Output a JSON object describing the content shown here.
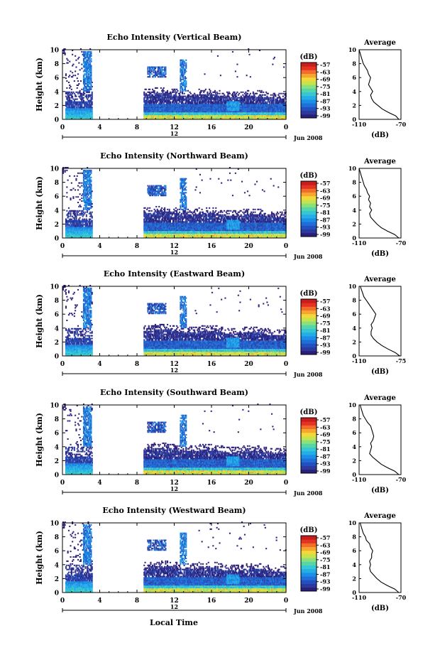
{
  "xlabel_bottom": "Local Time",
  "colorbar": {
    "unit": "(dB)",
    "ticks": [
      "-57",
      "-63",
      "-69",
      "-75",
      "-81",
      "-87",
      "-93",
      "-99"
    ],
    "colors": [
      "#2a1f7a",
      "#2b3a9c",
      "#2450bf",
      "#1f6fd8",
      "#1b8ee8",
      "#25aee6",
      "#37c6d3",
      "#56d6a8",
      "#8ae07a",
      "#c6e34e",
      "#f2d83a",
      "#f7a52f",
      "#f26c2a",
      "#e43322",
      "#c81d1d"
    ]
  },
  "date_label": "Jun 2008",
  "chart_data": [
    {
      "type": "heatmap",
      "title": "Echo Intensity (Vertical Beam)",
      "ylabel": "Height (km)",
      "yticks": [
        "0",
        "2",
        "4",
        "6",
        "8",
        "10"
      ],
      "ylim": [
        0,
        10
      ],
      "xticks": [
        "0",
        "4",
        "8",
        "12",
        "16",
        "20",
        "0"
      ],
      "xlim": [
        0,
        24
      ],
      "day_label": "12",
      "profile": {
        "title": "Average",
        "xlabel": "(dB)",
        "xticks": [
          "-110",
          "-70"
        ],
        "xlim": [
          -110,
          -70
        ],
        "yticks": [
          "0",
          "2",
          "4",
          "6",
          "8",
          "10"
        ],
        "points": [
          [
            -72,
            0
          ],
          [
            -75,
            0.5
          ],
          [
            -82,
            1
          ],
          [
            -88,
            1.5
          ],
          [
            -92,
            2
          ],
          [
            -96,
            2.5
          ],
          [
            -98,
            3
          ],
          [
            -99,
            3.5
          ],
          [
            -97,
            4
          ],
          [
            -99,
            4.5
          ],
          [
            -101,
            5
          ],
          [
            -100,
            5.5
          ],
          [
            -99,
            6
          ],
          [
            -101,
            6.5
          ],
          [
            -102,
            7
          ],
          [
            -104,
            7.5
          ],
          [
            -106,
            8
          ],
          [
            -107,
            8.5
          ],
          [
            -108,
            9
          ],
          [
            -109,
            9.5
          ],
          [
            -110,
            10
          ]
        ]
      }
    },
    {
      "type": "heatmap",
      "title": "Echo Intensity (Northward Beam)",
      "ylabel": "Height (km)",
      "yticks": [
        "0",
        "2",
        "4",
        "6",
        "8",
        "10"
      ],
      "ylim": [
        0,
        10
      ],
      "xticks": [
        "0",
        "4",
        "8",
        "12",
        "16",
        "20",
        "0"
      ],
      "xlim": [
        0,
        24
      ],
      "day_label": "12",
      "profile": {
        "title": "Average",
        "xlabel": "(dB)",
        "xticks": [
          "-110",
          "-70"
        ],
        "xlim": [
          -110,
          -70
        ],
        "yticks": [
          "0",
          "2",
          "4",
          "6",
          "8",
          "10"
        ],
        "points": [
          [
            -72,
            0
          ],
          [
            -76,
            0.5
          ],
          [
            -83,
            1
          ],
          [
            -89,
            1.5
          ],
          [
            -93,
            2
          ],
          [
            -96,
            2.5
          ],
          [
            -99,
            3
          ],
          [
            -100,
            3.5
          ],
          [
            -98,
            4
          ],
          [
            -100,
            4.5
          ],
          [
            -99,
            5
          ],
          [
            -101,
            5.5
          ],
          [
            -100,
            6
          ],
          [
            -102,
            6.5
          ],
          [
            -103,
            7
          ],
          [
            -105,
            7.5
          ],
          [
            -106,
            8
          ],
          [
            -107,
            8.5
          ],
          [
            -108,
            9
          ],
          [
            -109,
            9.5
          ],
          [
            -110,
            10
          ]
        ]
      }
    },
    {
      "type": "heatmap",
      "title": "Echo Intensity (Eastward Beam)",
      "ylabel": "Height (km)",
      "yticks": [
        "0",
        "2",
        "4",
        "6",
        "8",
        "10"
      ],
      "ylim": [
        0,
        10
      ],
      "xticks": [
        "0",
        "4",
        "8",
        "12",
        "16",
        "20",
        "0"
      ],
      "xlim": [
        0,
        24
      ],
      "day_label": "12",
      "profile": {
        "title": "Average",
        "xlabel": "(dB)",
        "xticks": [
          "-110",
          "-75"
        ],
        "xlim": [
          -110,
          -75
        ],
        "yticks": [
          "0",
          "2",
          "4",
          "6",
          "8",
          "10"
        ],
        "points": [
          [
            -76,
            0
          ],
          [
            -80,
            0.5
          ],
          [
            -86,
            1
          ],
          [
            -91,
            1.5
          ],
          [
            -95,
            2
          ],
          [
            -98,
            2.5
          ],
          [
            -100,
            3
          ],
          [
            -100,
            3.5
          ],
          [
            -99,
            4
          ],
          [
            -100,
            4.5
          ],
          [
            -98,
            5
          ],
          [
            -97,
            5.5
          ],
          [
            -96,
            6
          ],
          [
            -98,
            6.5
          ],
          [
            -100,
            7
          ],
          [
            -102,
            7.5
          ],
          [
            -104,
            8
          ],
          [
            -106,
            8.5
          ],
          [
            -107,
            9
          ],
          [
            -108,
            9.5
          ],
          [
            -109,
            10
          ]
        ]
      }
    },
    {
      "type": "heatmap",
      "title": "Echo Intensity (Southward Beam)",
      "ylabel": "Height (km)",
      "yticks": [
        "0",
        "2",
        "4",
        "6",
        "8",
        "10"
      ],
      "ylim": [
        0,
        10
      ],
      "xticks": [
        "0",
        "4",
        "8",
        "12",
        "16",
        "20",
        "0"
      ],
      "xlim": [
        0,
        24
      ],
      "day_label": "12",
      "profile": {
        "title": "Average",
        "xlabel": "(dB)",
        "xticks": [
          "-110",
          "-70"
        ],
        "xlim": [
          -110,
          -70
        ],
        "yticks": [
          "0",
          "2",
          "4",
          "6",
          "8",
          "10"
        ],
        "points": [
          [
            -72,
            0
          ],
          [
            -76,
            0.5
          ],
          [
            -83,
            1
          ],
          [
            -89,
            1.5
          ],
          [
            -93,
            2
          ],
          [
            -97,
            2.5
          ],
          [
            -100,
            3
          ],
          [
            -99,
            3.5
          ],
          [
            -98,
            4
          ],
          [
            -99,
            4.5
          ],
          [
            -97,
            5
          ],
          [
            -96,
            5.5
          ],
          [
            -97,
            6
          ],
          [
            -98,
            6.5
          ],
          [
            -99,
            7
          ],
          [
            -102,
            7.5
          ],
          [
            -104,
            8
          ],
          [
            -106,
            8.5
          ],
          [
            -107,
            9
          ],
          [
            -108,
            9.5
          ],
          [
            -109,
            10
          ]
        ]
      }
    },
    {
      "type": "heatmap",
      "title": "Echo Intensity (Westward Beam)",
      "ylabel": "Height (km)",
      "yticks": [
        "0",
        "2",
        "4",
        "6",
        "8",
        "10"
      ],
      "ylim": [
        0,
        10
      ],
      "xticks": [
        "0",
        "4",
        "8",
        "12",
        "16",
        "20",
        "0"
      ],
      "xlim": [
        0,
        24
      ],
      "day_label": "12",
      "profile": {
        "title": "Average",
        "xlabel": "(dB)",
        "xticks": [
          "-110",
          "-70"
        ],
        "xlim": [
          -110,
          -70
        ],
        "yticks": [
          "0",
          "2",
          "4",
          "6",
          "8",
          "10"
        ],
        "points": [
          [
            -72,
            0
          ],
          [
            -76,
            0.5
          ],
          [
            -83,
            1
          ],
          [
            -89,
            1.5
          ],
          [
            -93,
            2
          ],
          [
            -96,
            2.5
          ],
          [
            -99,
            3
          ],
          [
            -100,
            3.5
          ],
          [
            -99,
            4
          ],
          [
            -100,
            4.5
          ],
          [
            -98,
            5
          ],
          [
            -98,
            5.5
          ],
          [
            -97,
            6
          ],
          [
            -99,
            6.5
          ],
          [
            -100,
            7
          ],
          [
            -103,
            7.5
          ],
          [
            -104,
            8
          ],
          [
            -106,
            8.5
          ],
          [
            -107,
            9
          ],
          [
            -108,
            9.5
          ],
          [
            -109,
            10
          ]
        ]
      }
    }
  ]
}
